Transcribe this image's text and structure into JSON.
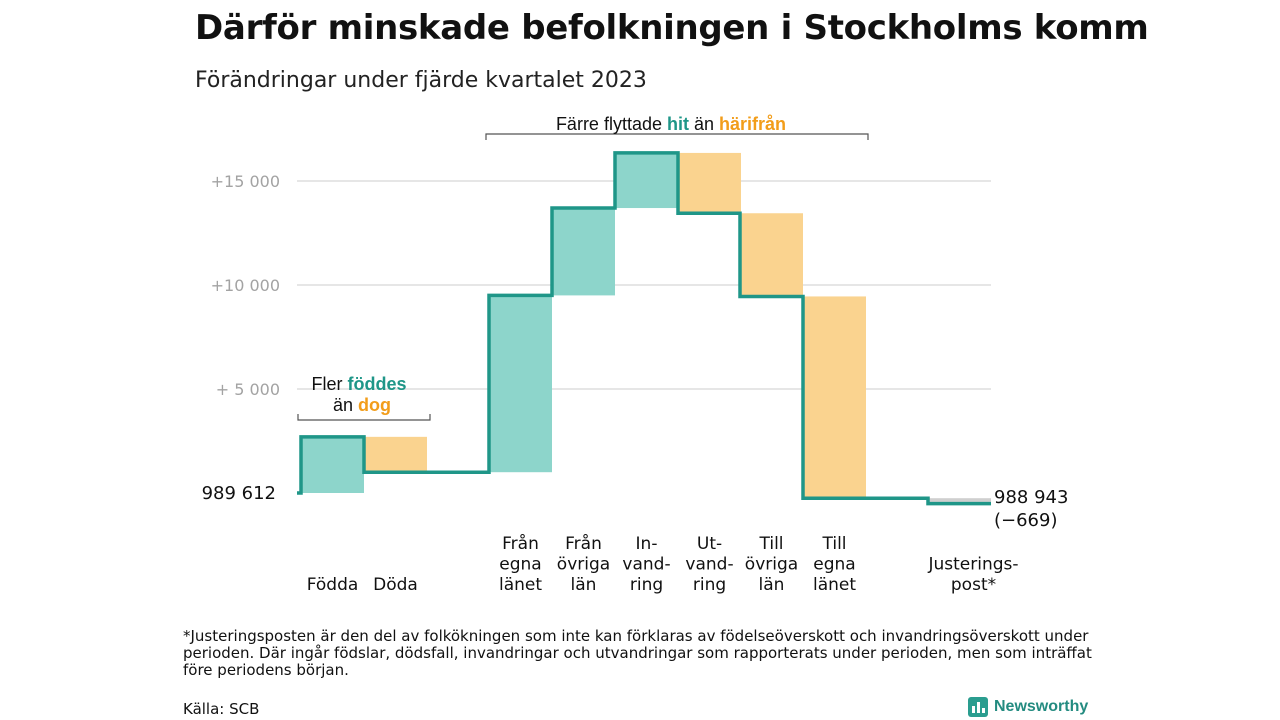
{
  "title": "Därför minskade befolkningen i Stockholms komm",
  "subtitle": "Förändringar under fjärde kvartalet 2023",
  "chart_data": {
    "type": "waterfall",
    "start": {
      "label": "989   612",
      "value": 989612
    },
    "end": {
      "label": "988 943",
      "change_label": "(−669)",
      "value": 988943
    },
    "yaxis": {
      "tick_labels": [
        "+  5  000",
        "+10   000",
        "+15   000"
      ],
      "tick_values": [
        5000,
        10000,
        15000
      ],
      "range": [
        -1200,
        17500
      ]
    },
    "steps": [
      {
        "label_lines": [
          "Födda"
        ],
        "value": 2700,
        "kind": "plus"
      },
      {
        "label_lines": [
          "Döda"
        ],
        "value": -1700,
        "kind": "minus"
      },
      {
        "label_lines": [
          "Från",
          "egna",
          "länet"
        ],
        "value": 8500,
        "kind": "plus"
      },
      {
        "label_lines": [
          "Från",
          "övriga",
          "län"
        ],
        "value": 4200,
        "kind": "plus"
      },
      {
        "label_lines": [
          "In-",
          "vand-",
          "ring"
        ],
        "value": 2650,
        "kind": "plus"
      },
      {
        "label_lines": [
          "Ut-",
          "vand-",
          "ring"
        ],
        "value": -2900,
        "kind": "minus"
      },
      {
        "label_lines": [
          "Till",
          "övriga",
          "län"
        ],
        "value": -4000,
        "kind": "minus"
      },
      {
        "label_lines": [
          "Till",
          "egna",
          "länet"
        ],
        "value": -9700,
        "kind": "minus"
      },
      {
        "label_lines": [
          "Justerings-",
          "post*"
        ],
        "value": -260,
        "kind": "adjust"
      }
    ],
    "annotations": {
      "natural": {
        "line1_text": "Fler ",
        "line1_highlight": "föddes",
        "line2_text": "än ",
        "line2_highlight": "dog"
      },
      "migration": {
        "text1": "Färre flyttade ",
        "highlight1": "hit",
        "text2": " än ",
        "highlight2": "härifrån"
      }
    },
    "colors": {
      "plus": "#8dd5cb",
      "minus": "#fad38f",
      "adjust": "#cfcfcf",
      "line": "#1f9688",
      "plus_text": "#1f9688",
      "minus_text": "#f29d1a",
      "grid": "#dddddd",
      "tick": "#a3a3a3"
    }
  },
  "footnote": "*Justeringsposten är den del av folkökningen som inte kan förklaras av födelseöverskott och invandringsöverskott under perioden. Där ingår födslar, dödsfall, invandringar och utvandringar som rapporterats under perioden, men som inträffat före periodens början.",
  "source": "Källa: SCB",
  "brand": "Newsworthy"
}
